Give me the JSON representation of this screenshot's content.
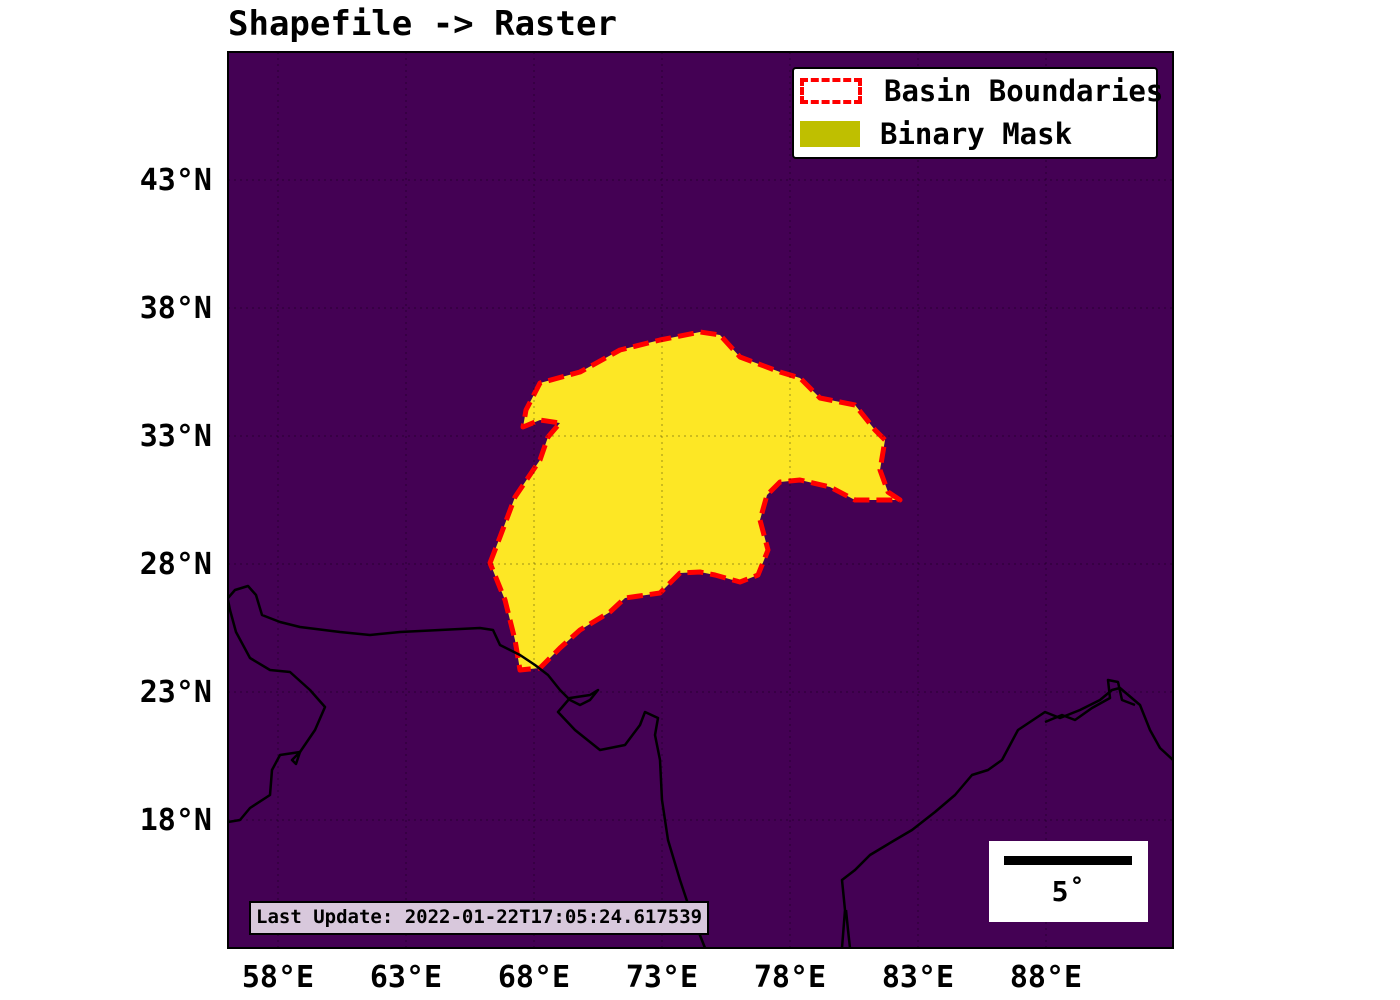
{
  "title": "Shapefile -> Raster",
  "legend": {
    "items": [
      {
        "label": "Basin Boundaries",
        "style": "dashed",
        "color": "#ff0000"
      },
      {
        "label": "Binary Mask",
        "style": "fill",
        "color": "#bfbf00"
      }
    ]
  },
  "axes": {
    "lon_ticks": [
      "58°E",
      "63°E",
      "68°E",
      "73°E",
      "78°E",
      "83°E",
      "88°E"
    ],
    "lat_ticks": [
      "43°N",
      "38°N",
      "33°N",
      "28°N",
      "23°N",
      "18°N"
    ],
    "lon_range_deg": [
      56,
      93
    ],
    "lat_range_deg": [
      13,
      48
    ]
  },
  "timestamp": "Last Update: 2022-01-22T17:05:24.617539",
  "scale_bar": {
    "label": "5˚"
  },
  "colors": {
    "background": "#440154",
    "mask": "#fde725",
    "boundary": "#ff0000",
    "coastline": "#000000"
  }
}
